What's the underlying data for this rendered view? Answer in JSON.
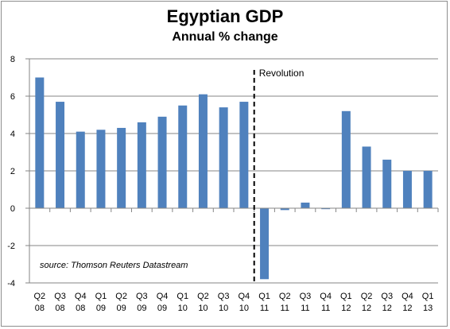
{
  "chart_data": {
    "type": "bar",
    "title": "Egyptian GDP",
    "subtitle": "Annual % change",
    "xlabel": "",
    "ylabel": "",
    "categories": [
      [
        "Q2",
        "08"
      ],
      [
        "Q3",
        "08"
      ],
      [
        "Q4",
        "08"
      ],
      [
        "Q1",
        "09"
      ],
      [
        "Q2",
        "09"
      ],
      [
        "Q3",
        "09"
      ],
      [
        "Q4",
        "09"
      ],
      [
        "Q1",
        "10"
      ],
      [
        "Q2",
        "10"
      ],
      [
        "Q3",
        "10"
      ],
      [
        "Q4",
        "10"
      ],
      [
        "Q1",
        "11"
      ],
      [
        "Q2",
        "11"
      ],
      [
        "Q3",
        "11"
      ],
      [
        "Q4",
        "11"
      ],
      [
        "Q1",
        "12"
      ],
      [
        "Q2",
        "12"
      ],
      [
        "Q3",
        "12"
      ],
      [
        "Q4",
        "12"
      ],
      [
        "Q1",
        "13"
      ]
    ],
    "values": [
      7.0,
      5.7,
      4.1,
      4.2,
      4.3,
      4.6,
      4.9,
      5.5,
      6.1,
      5.4,
      5.7,
      -3.8,
      -0.1,
      0.3,
      -0.05,
      5.2,
      3.3,
      2.6,
      2.0,
      2.0
    ],
    "ylim": [
      -4,
      8
    ],
    "yticks": [
      8,
      6,
      4,
      2,
      0,
      -2,
      -4
    ],
    "grid": true,
    "bar_color": "#4f81bd",
    "annotation": {
      "text": "Revolution",
      "at_category": "Q1 11"
    },
    "source_note": "source: Thomson Reuters Datastream"
  }
}
